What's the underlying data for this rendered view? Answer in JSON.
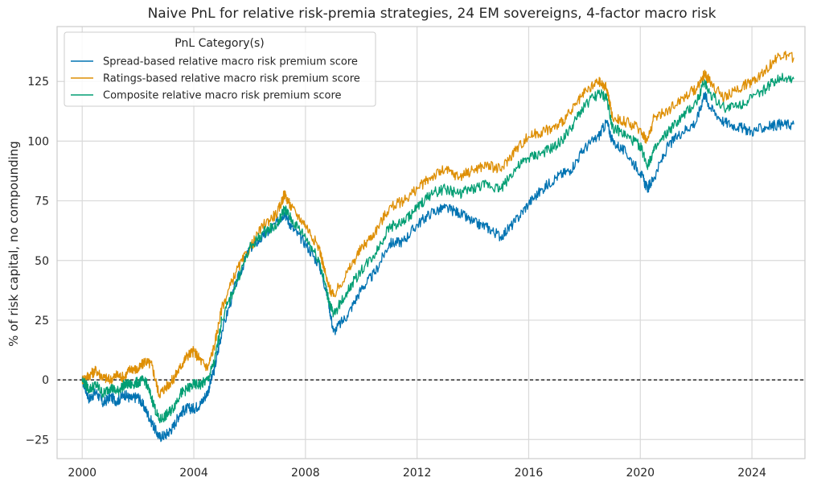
{
  "chart_data": {
    "type": "line",
    "title": "Naive PnL for relative risk-premia strategies, 24 EM sovereigns, 4-factor macro risk",
    "xlabel": "",
    "ylabel": "% of risk capital, no compounding",
    "xlim": [
      1999.1,
      2025.9
    ],
    "ylim": [
      -33,
      148
    ],
    "xticks": [
      2000,
      2004,
      2008,
      2012,
      2016,
      2020,
      2024
    ],
    "xtick_labels": [
      "2000",
      "2004",
      "2008",
      "2012",
      "2016",
      "2020",
      "2024"
    ],
    "yticks": [
      -25,
      0,
      25,
      50,
      75,
      100,
      125
    ],
    "ytick_labels": [
      "−25",
      "0",
      "25",
      "50",
      "75",
      "100",
      "125"
    ],
    "grid": true,
    "reference_line": {
      "y": 0,
      "style": "dashed",
      "color": "#000000"
    },
    "legend": {
      "title": "PnL Category(s)",
      "placement": "top-left"
    },
    "series": [
      {
        "name": "Spread-based relative macro risk premium score",
        "color": "#0173b2",
        "x": [
          2000.0,
          2000.25,
          2000.5,
          2000.75,
          2001.0,
          2001.25,
          2001.5,
          2001.75,
          2002.0,
          2002.25,
          2002.5,
          2002.75,
          2003.0,
          2003.25,
          2003.5,
          2003.75,
          2004.0,
          2004.25,
          2004.5,
          2004.75,
          2005.0,
          2005.5,
          2006.0,
          2006.5,
          2007.0,
          2007.25,
          2007.5,
          2008.0,
          2008.5,
          2008.8,
          2009.0,
          2009.5,
          2010.0,
          2010.5,
          2011.0,
          2011.5,
          2012.0,
          2012.5,
          2013.0,
          2013.5,
          2014.0,
          2014.5,
          2015.0,
          2015.5,
          2016.0,
          2016.5,
          2017.0,
          2017.5,
          2018.0,
          2018.5,
          2018.8,
          2019.0,
          2019.5,
          2020.0,
          2020.25,
          2020.5,
          2021.0,
          2021.5,
          2022.0,
          2022.3,
          2022.5,
          2023.0,
          2023.5,
          2024.0,
          2024.5,
          2025.0,
          2025.5
        ],
        "y": [
          0,
          -8,
          -5,
          -10,
          -7,
          -9,
          -6,
          -8,
          -7,
          -12,
          -18,
          -24,
          -23,
          -20,
          -14,
          -12,
          -12,
          -10,
          -5,
          5,
          20,
          40,
          55,
          60,
          66,
          70,
          64,
          57,
          48,
          35,
          20,
          27,
          38,
          45,
          57,
          58,
          65,
          70,
          72,
          70,
          66,
          64,
          60,
          66,
          74,
          80,
          85,
          88,
          97,
          102,
          108,
          100,
          95,
          87,
          80,
          85,
          98,
          104,
          108,
          120,
          114,
          108,
          106,
          104,
          106,
          107,
          107
        ]
      },
      {
        "name": "Ratings-based relative macro risk premium score",
        "color": "#de8f05",
        "x": [
          2000.0,
          2000.25,
          2000.5,
          2000.75,
          2001.0,
          2001.25,
          2001.5,
          2001.75,
          2002.0,
          2002.25,
          2002.5,
          2002.75,
          2003.0,
          2003.25,
          2003.5,
          2003.75,
          2004.0,
          2004.25,
          2004.5,
          2004.75,
          2005.0,
          2005.5,
          2006.0,
          2006.5,
          2007.0,
          2007.25,
          2007.5,
          2008.0,
          2008.5,
          2008.8,
          2009.0,
          2009.5,
          2010.0,
          2010.5,
          2011.0,
          2011.5,
          2012.0,
          2012.5,
          2013.0,
          2013.5,
          2014.0,
          2014.5,
          2015.0,
          2015.5,
          2016.0,
          2016.5,
          2017.0,
          2017.5,
          2018.0,
          2018.5,
          2018.8,
          2019.0,
          2019.5,
          2020.0,
          2020.25,
          2020.5,
          2021.0,
          2021.5,
          2022.0,
          2022.3,
          2022.5,
          2023.0,
          2023.5,
          2024.0,
          2024.5,
          2025.0,
          2025.5
        ],
        "y": [
          0,
          2,
          4,
          1,
          0,
          2,
          1,
          5,
          4,
          8,
          6,
          -6,
          -3,
          0,
          5,
          10,
          12,
          8,
          5,
          15,
          30,
          45,
          55,
          65,
          70,
          78,
          72,
          65,
          55,
          40,
          35,
          45,
          55,
          62,
          72,
          75,
          80,
          85,
          88,
          85,
          88,
          90,
          88,
          96,
          102,
          104,
          106,
          112,
          120,
          125,
          122,
          110,
          108,
          105,
          100,
          110,
          113,
          118,
          122,
          128,
          125,
          118,
          122,
          125,
          130,
          136,
          135
        ]
      },
      {
        "name": "Composite relative macro risk premium score",
        "color": "#029e73",
        "x": [
          2000.0,
          2000.25,
          2000.5,
          2000.75,
          2001.0,
          2001.25,
          2001.5,
          2001.75,
          2002.0,
          2002.25,
          2002.5,
          2002.75,
          2003.0,
          2003.25,
          2003.5,
          2003.75,
          2004.0,
          2004.25,
          2004.5,
          2004.75,
          2005.0,
          2005.5,
          2006.0,
          2006.5,
          2007.0,
          2007.25,
          2007.5,
          2008.0,
          2008.5,
          2008.8,
          2009.0,
          2009.5,
          2010.0,
          2010.5,
          2011.0,
          2011.5,
          2012.0,
          2012.5,
          2013.0,
          2013.5,
          2014.0,
          2014.5,
          2015.0,
          2015.5,
          2016.0,
          2016.5,
          2017.0,
          2017.5,
          2018.0,
          2018.5,
          2018.8,
          2019.0,
          2019.5,
          2020.0,
          2020.25,
          2020.5,
          2021.0,
          2021.5,
          2022.0,
          2022.3,
          2022.5,
          2023.0,
          2023.5,
          2024.0,
          2024.5,
          2025.0,
          2025.5
        ],
        "y": [
          0,
          -4,
          -2,
          -6,
          -3,
          -5,
          -2,
          -2,
          -1,
          0,
          -8,
          -17,
          -15,
          -12,
          -6,
          -4,
          -2,
          -2,
          0,
          8,
          25,
          40,
          55,
          62,
          65,
          72,
          67,
          60,
          50,
          35,
          27,
          37,
          46,
          53,
          64,
          66,
          72,
          78,
          80,
          78,
          80,
          82,
          80,
          88,
          93,
          95,
          98,
          105,
          115,
          120,
          118,
          106,
          102,
          98,
          90,
          96,
          104,
          110,
          116,
          125,
          120,
          114,
          115,
          118,
          122,
          127,
          126
        ]
      }
    ]
  }
}
